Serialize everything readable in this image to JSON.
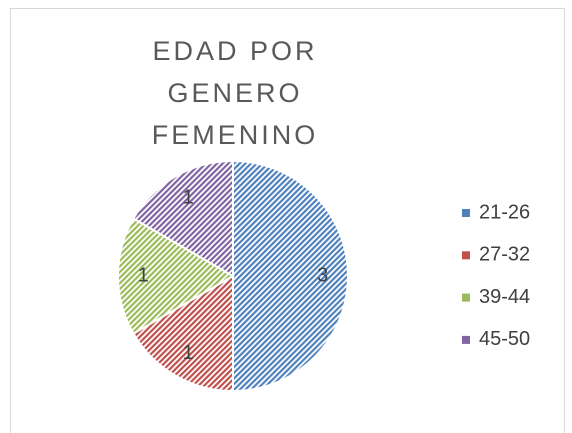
{
  "chart_data": {
    "type": "pie",
    "title": "EDAD POR GENERO FEMENINO",
    "categories": [
      "21-26",
      "27-32",
      "39-44",
      "45-50"
    ],
    "values": [
      3,
      1,
      1,
      1
    ],
    "colors": [
      "#4f81bd",
      "#c0504d",
      "#9bbb59",
      "#8064a2"
    ],
    "legend": "right"
  }
}
